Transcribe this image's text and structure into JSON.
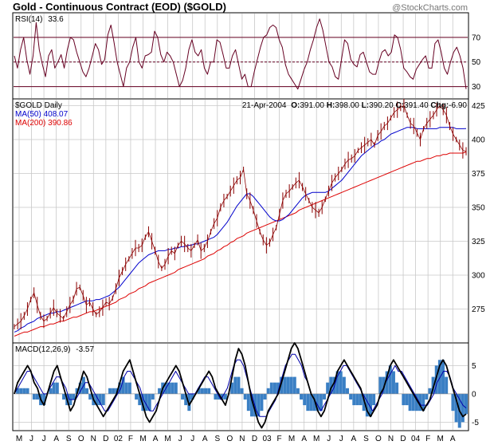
{
  "header": {
    "title": "Gold - Continuous Contract (EOD) ($GOLD)",
    "brand": "@StockCharts.com"
  },
  "info": {
    "date": "21-Apr-2004",
    "o_label": "O:",
    "o_value": "391.00",
    "h_label": "H:",
    "h_value": "398.00",
    "l_label": "L:",
    "l_value": "390.20",
    "c_label": "C:",
    "c_value": "391.40",
    "chg_label": "Chg:",
    "chg_value": "-6.90"
  },
  "colors": {
    "price": "#8b0000",
    "ma50": "#0000cc",
    "ma200": "#dd0000",
    "rsi": "#660022",
    "macd": "#000000",
    "signal": "#0000aa",
    "hist": "#3a7fc4",
    "grid": "#c8c8c8",
    "border": "#000000"
  },
  "chart_data": [
    {
      "type": "line",
      "panel": "RSI",
      "label": "RSI(14)",
      "value": "33.6",
      "levels": [
        30,
        50,
        70
      ],
      "ylim": [
        20,
        90
      ],
      "ticks": [
        30,
        50,
        70
      ],
      "series": [
        {
          "name": "RSI(14)",
          "values": [
            55,
            45,
            60,
            70,
            52,
            40,
            55,
            82,
            60,
            48,
            38,
            55,
            60,
            45,
            50,
            56,
            45,
            60,
            70,
            68,
            58,
            50,
            42,
            38,
            45,
            55,
            65,
            60,
            48,
            52,
            72,
            80,
            66,
            50,
            40,
            30,
            45,
            50,
            62,
            70,
            50,
            45,
            55,
            56,
            58,
            75,
            70,
            56,
            50,
            58,
            55,
            50,
            40,
            30,
            35,
            45,
            60,
            68,
            58,
            55,
            60,
            45,
            40,
            50,
            50,
            68,
            66,
            56,
            45,
            45,
            55,
            60,
            48,
            36,
            40,
            30,
            30,
            42,
            52,
            62,
            70,
            72,
            78,
            80,
            78,
            68,
            62,
            48,
            40,
            36,
            32,
            28,
            36,
            44,
            50,
            60,
            68,
            78,
            85,
            76,
            63,
            50,
            46,
            38,
            36,
            52,
            68,
            65,
            52,
            48,
            46,
            56,
            58,
            50,
            42,
            40,
            40,
            50,
            58,
            60,
            55,
            58,
            72,
            70,
            60,
            45,
            42,
            38,
            36,
            44,
            48,
            52,
            55,
            45,
            45,
            65,
            68,
            58,
            45,
            40,
            50,
            58,
            62,
            55,
            45,
            28
          ]
        }
      ]
    },
    {
      "type": "line",
      "panel": "Price",
      "label": "$GOLD Daily",
      "ylim": [
        250,
        430
      ],
      "ticks": [
        275,
        300,
        325,
        350,
        375,
        400,
        425
      ],
      "series": [
        {
          "name": "$GOLD",
          "values": [
            262,
            264,
            266,
            270,
            275,
            282,
            287,
            278,
            270,
            266,
            268,
            272,
            276,
            272,
            270,
            268,
            273,
            278,
            282,
            290,
            291,
            285,
            278,
            280,
            275,
            271,
            273,
            276,
            280,
            279,
            283,
            290,
            298,
            303,
            308,
            312,
            316,
            320,
            320,
            322,
            328,
            332,
            325,
            318,
            310,
            305,
            308,
            314,
            318,
            316,
            322,
            325,
            323,
            320,
            318,
            322,
            326,
            318,
            320,
            325,
            332,
            338,
            342,
            350,
            355,
            358,
            362,
            366,
            370,
            372,
            378,
            360,
            355,
            348,
            340,
            332,
            326,
            322,
            324,
            330,
            335,
            345,
            355,
            360,
            362,
            365,
            368,
            370,
            365,
            360,
            355,
            350,
            348,
            346,
            350,
            356,
            362,
            368,
            372,
            375,
            378,
            382,
            385,
            386,
            388,
            392,
            394,
            396,
            398,
            400,
            396,
            403,
            406,
            410,
            412,
            416,
            420,
            422,
            424,
            425,
            418,
            412,
            410,
            405,
            400,
            408,
            412,
            415,
            418,
            422,
            425,
            422,
            418,
            410,
            404,
            400,
            396,
            392,
            391.4
          ]
        },
        {
          "name": "MA(50)",
          "label_value": "408.07",
          "values": [
            258,
            259,
            261,
            262,
            264,
            265,
            266,
            268,
            269,
            270,
            271,
            272,
            272,
            273,
            273,
            274,
            275,
            276,
            277,
            278,
            279,
            280,
            281,
            281,
            281,
            282,
            282,
            283,
            284,
            285,
            287,
            289,
            291,
            294,
            297,
            300,
            303,
            306,
            309,
            311,
            313,
            315,
            316,
            317,
            318,
            318,
            318,
            319,
            319,
            320,
            320,
            321,
            321,
            322,
            322,
            323,
            323,
            324,
            325,
            326,
            327,
            328,
            330,
            333,
            336,
            339,
            343,
            347,
            351,
            354,
            357,
            360,
            360,
            358,
            355,
            352,
            349,
            346,
            343,
            341,
            340,
            340,
            341,
            343,
            345,
            348,
            351,
            354,
            357,
            359,
            360,
            361,
            361,
            361,
            361,
            361,
            362,
            364,
            366,
            368,
            370,
            373,
            376,
            379,
            382,
            385,
            388,
            390,
            392,
            394,
            396,
            397,
            399,
            400,
            402,
            404,
            405,
            406,
            407,
            408,
            409,
            409,
            409,
            408,
            408,
            408,
            408,
            408,
            408,
            408,
            409,
            409,
            409,
            409,
            409,
            408,
            408,
            408,
            408.07
          ]
        },
        {
          "name": "MA(200)",
          "label_value": "390.86",
          "values": [
            255,
            256,
            257,
            258,
            258,
            259,
            260,
            261,
            262,
            262,
            263,
            264,
            264,
            265,
            266,
            266,
            267,
            268,
            269,
            269,
            270,
            271,
            272,
            273,
            273,
            274,
            275,
            276,
            277,
            278,
            279,
            280,
            282,
            283,
            284,
            286,
            287,
            288,
            290,
            291,
            292,
            294,
            295,
            296,
            297,
            298,
            299,
            300,
            301,
            302,
            304,
            305,
            306,
            307,
            308,
            309,
            310,
            311,
            312,
            314,
            315,
            316,
            318,
            319,
            321,
            322,
            324,
            325,
            327,
            328,
            329,
            331,
            332,
            333,
            334,
            335,
            336,
            337,
            338,
            339,
            340,
            341,
            342,
            343,
            344,
            345,
            346,
            348,
            349,
            350,
            351,
            352,
            353,
            354,
            355,
            356,
            357,
            358,
            359,
            360,
            361,
            362,
            363,
            364,
            365,
            366,
            367,
            368,
            369,
            370,
            371,
            372,
            373,
            374,
            375,
            376,
            377,
            378,
            379,
            380,
            381,
            382,
            383,
            384,
            384,
            385,
            386,
            386,
            387,
            388,
            388,
            389,
            389,
            390,
            390,
            390,
            390,
            390,
            390.86
          ]
        }
      ]
    },
    {
      "type": "line",
      "panel": "MACD",
      "label": "MACD(12,26,9)",
      "value": "-3.57",
      "ylim": [
        -6.5,
        9
      ],
      "ticks": [
        -5,
        0,
        5
      ],
      "series": [
        {
          "name": "MACD",
          "values": [
            0,
            2,
            3,
            4,
            5,
            4,
            2,
            1,
            -1,
            -2,
            0,
            2,
            4,
            5,
            3,
            1,
            -1,
            -3,
            -2,
            0,
            2,
            4,
            3,
            1,
            -1,
            -2,
            -3,
            -4,
            -3,
            -2,
            -1,
            0,
            2,
            4,
            5,
            6,
            4,
            2,
            0,
            -2,
            -4,
            -5,
            -4,
            -3,
            -1,
            1,
            2,
            3,
            4,
            5,
            4,
            2,
            0,
            -2,
            -1,
            0,
            1,
            2,
            3,
            4,
            3,
            1,
            0,
            -1,
            -2,
            0,
            3,
            6,
            8,
            7,
            5,
            2,
            -1,
            -3,
            -5,
            -6,
            -5,
            -3,
            -2,
            -1,
            0,
            2,
            4,
            6,
            8,
            9,
            8,
            6,
            4,
            2,
            0,
            -1,
            -3,
            -4,
            -3,
            -1,
            1,
            2,
            4,
            5,
            6,
            5,
            4,
            3,
            2,
            1,
            -1,
            -3,
            -4,
            -3,
            -2,
            0,
            1,
            3,
            5,
            6,
            5,
            4,
            3,
            2,
            1,
            0,
            -1,
            -2,
            -3,
            -2,
            -1,
            1,
            3,
            5,
            6,
            5,
            3,
            1,
            -1,
            -3,
            -4,
            -3.57
          ]
        },
        {
          "name": "Signal",
          "values": [
            0,
            1,
            2,
            3,
            4,
            4,
            3,
            2,
            1,
            0,
            0,
            1,
            2,
            3,
            3,
            2,
            1,
            -1,
            -1,
            -1,
            0,
            1,
            2,
            2,
            1,
            0,
            -1,
            -2,
            -3,
            -3,
            -2,
            -1,
            0,
            1,
            3,
            4,
            4,
            3,
            2,
            1,
            -1,
            -2,
            -3,
            -3,
            -2,
            -1,
            0,
            1,
            2,
            3,
            4,
            3,
            2,
            1,
            0,
            0,
            0,
            1,
            2,
            3,
            3,
            2,
            1,
            0,
            -1,
            0,
            1,
            3,
            5,
            6,
            6,
            5,
            3,
            1,
            -1,
            -3,
            -4,
            -4,
            -4,
            -3,
            -2,
            -1,
            1,
            3,
            5,
            6,
            7,
            7,
            6,
            5,
            3,
            2,
            0,
            -1,
            -2,
            -3,
            -2,
            -1,
            0,
            1,
            3,
            4,
            5,
            5,
            4,
            3,
            2,
            1,
            0,
            -1,
            -2,
            -3,
            -2,
            -1,
            0,
            2,
            3,
            4,
            5,
            4,
            4,
            3,
            2,
            1,
            0,
            -1,
            -2,
            -2,
            -2,
            -1,
            0,
            2,
            3,
            4,
            4,
            3,
            1,
            0,
            -1,
            -2,
            -2.5
          ]
        }
      ]
    }
  ],
  "x_axis": {
    "labels": [
      "M",
      "J",
      "J",
      "A",
      "S",
      "O",
      "N",
      "D",
      "02",
      "F",
      "M",
      "A",
      "M",
      "J",
      "J",
      "A",
      "S",
      "O",
      "N",
      "D",
      "03",
      "F",
      "M",
      "A",
      "M",
      "J",
      "J",
      "A",
      "S",
      "O",
      "N",
      "D",
      "04",
      "F",
      "M",
      "A"
    ]
  }
}
